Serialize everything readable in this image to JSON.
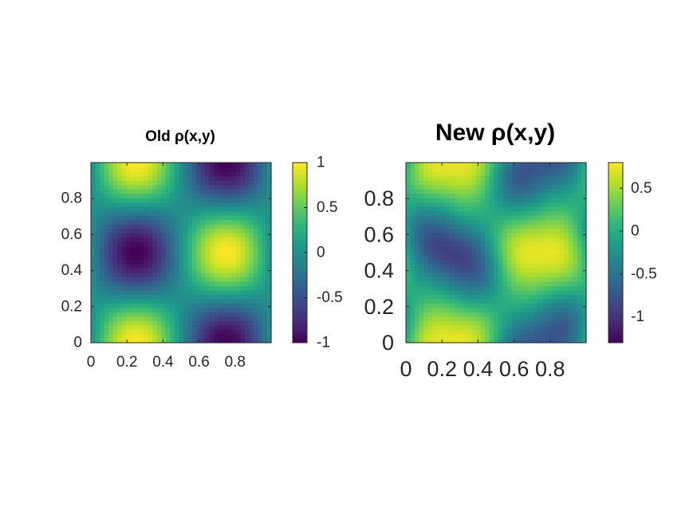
{
  "chart_data": [
    {
      "type": "heatmap",
      "title": "Old ρ(x,y)",
      "xlabel": "",
      "ylabel": "",
      "xlim": [
        0,
        1
      ],
      "ylim": [
        0,
        1
      ],
      "x_ticks": [
        0,
        0.2,
        0.4,
        0.6,
        0.8
      ],
      "x_tick_labels": [
        "0",
        "0.2",
        "0.4",
        "0.6",
        "0.8"
      ],
      "y_ticks": [
        0,
        0.2,
        0.4,
        0.6,
        0.8
      ],
      "y_tick_labels": [
        "0",
        "0.2",
        "0.4",
        "0.6",
        "0.8"
      ],
      "colormap": "viridis",
      "colorbar": {
        "range": [
          -1,
          1
        ],
        "ticks": [
          -1,
          -0.5,
          0,
          0.5,
          1
        ],
        "tick_labels": [
          "-1",
          "-0.5",
          "0",
          "0.5",
          "1"
        ]
      },
      "field": "sin(2*pi*x)*cos(2*pi*y)",
      "grid_size": 41
    },
    {
      "type": "heatmap",
      "title": "New ρ(x,y)",
      "xlabel": "",
      "ylabel": "",
      "xlim": [
        0,
        1
      ],
      "ylim": [
        0,
        1
      ],
      "x_ticks": [
        0,
        0.2,
        0.4,
        0.6,
        0.8
      ],
      "x_tick_labels": [
        "0",
        "0.2",
        "0.4",
        "0.6",
        "0.8"
      ],
      "y_ticks": [
        0,
        0.2,
        0.4,
        0.6,
        0.8
      ],
      "y_tick_labels": [
        "0",
        "0.2",
        "0.4",
        "0.6",
        "0.8"
      ],
      "colormap": "viridis",
      "colorbar": {
        "range": [
          -1.3,
          0.8
        ],
        "ticks": [
          -1,
          -0.5,
          0,
          0.5
        ],
        "tick_labels": [
          "-1",
          "-0.5",
          "0",
          "0.5"
        ]
      },
      "field": "sin(2*pi*x)*cos(2*pi*y) smoothed and sheared",
      "grid_size": 41
    }
  ],
  "colors": {
    "viridis": [
      "#440154",
      "#482878",
      "#3e4989",
      "#31688e",
      "#26828e",
      "#1f9e89",
      "#35b779",
      "#6ece58",
      "#b5de2b",
      "#fde725"
    ]
  }
}
